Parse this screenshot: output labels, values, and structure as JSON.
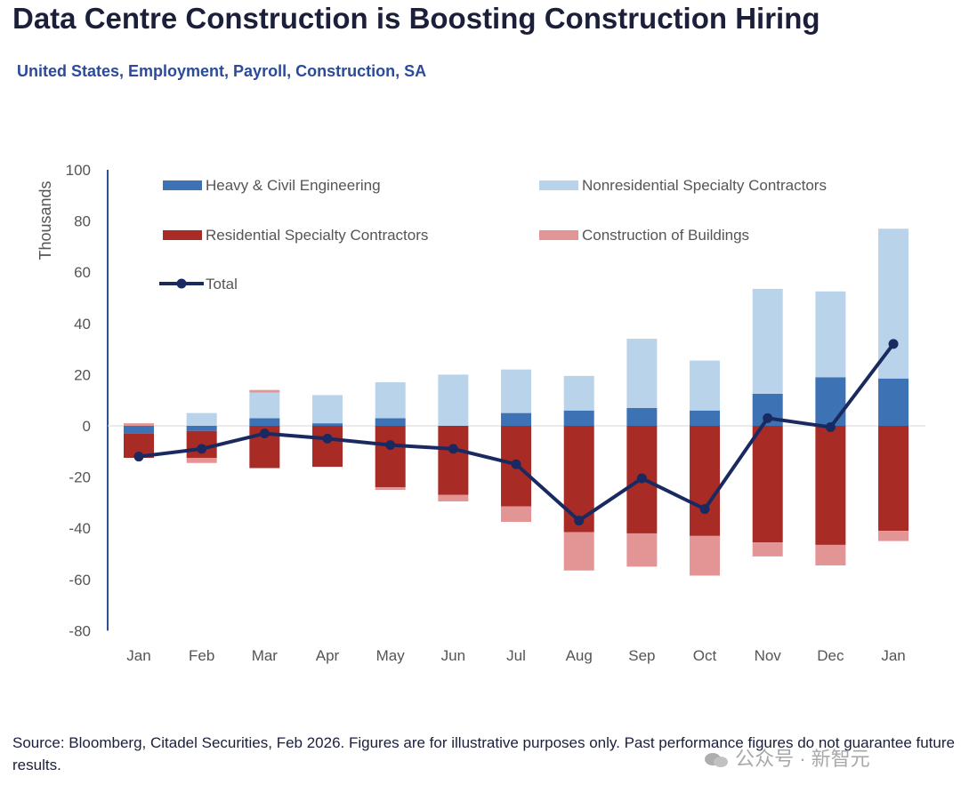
{
  "title": "Data Centre Construction is Boosting Construction Hiring",
  "subtitle": "United States, Employment, Payroll, Construction, SA",
  "source": "Source: Bloomberg, Citadel Securities, Feb 2026. Figures are for illustrative purposes only. Past performance figures do not guarantee future results.",
  "watermark": "公众号 · 新智元",
  "colors": {
    "heavy": "#3d72b4",
    "nonres": "#b9d3ea",
    "res": "#a92b26",
    "bldg": "#e39595",
    "total": "#1a2a60",
    "axis": "#2f4f9a"
  },
  "chart_data": {
    "type": "bar",
    "stacked": true,
    "title": "Data Centre Construction is Boosting Construction Hiring",
    "ylabel": "Thousands",
    "xlabel": "",
    "ylim": [
      -80,
      100
    ],
    "yticks": [
      100,
      80,
      60,
      40,
      20,
      0,
      -20,
      -40,
      -60,
      -80
    ],
    "categories": [
      "Jan",
      "Feb",
      "Mar",
      "Apr",
      "May",
      "Jun",
      "Jul",
      "Aug",
      "Sep",
      "Oct",
      "Nov",
      "Dec",
      "Jan"
    ],
    "series": [
      {
        "name": "Heavy & Civil Engineering",
        "type": "bar",
        "values": [
          -3,
          -2,
          3,
          1,
          3,
          0,
          5,
          6,
          7,
          6,
          12.5,
          19,
          18.5
        ]
      },
      {
        "name": "Nonresidential Specialty Contractors",
        "type": "bar",
        "values": [
          0,
          5,
          10,
          11,
          14,
          20,
          17,
          13.5,
          27,
          19.5,
          41,
          33.5,
          58.5
        ]
      },
      {
        "name": "Residential Specialty Contractors",
        "type": "bar",
        "values": [
          -9.5,
          -10.5,
          -16.5,
          -16,
          -24,
          -27,
          -31.5,
          -41.5,
          -42,
          -43,
          -45.5,
          -46.5,
          -41
        ]
      },
      {
        "name": "Construction of Buildings",
        "type": "bar",
        "values": [
          1,
          -2,
          1,
          0,
          -1,
          -2.5,
          -6,
          -15,
          -13,
          -15.5,
          -5.5,
          -8,
          -4
        ]
      },
      {
        "name": "Total",
        "type": "line",
        "values": [
          -12,
          -9,
          -3,
          -5,
          -7.5,
          -9,
          -15,
          -37,
          -20.5,
          -32.5,
          3,
          -0.5,
          32
        ]
      }
    ],
    "legend_position": "top, inside plot area"
  }
}
